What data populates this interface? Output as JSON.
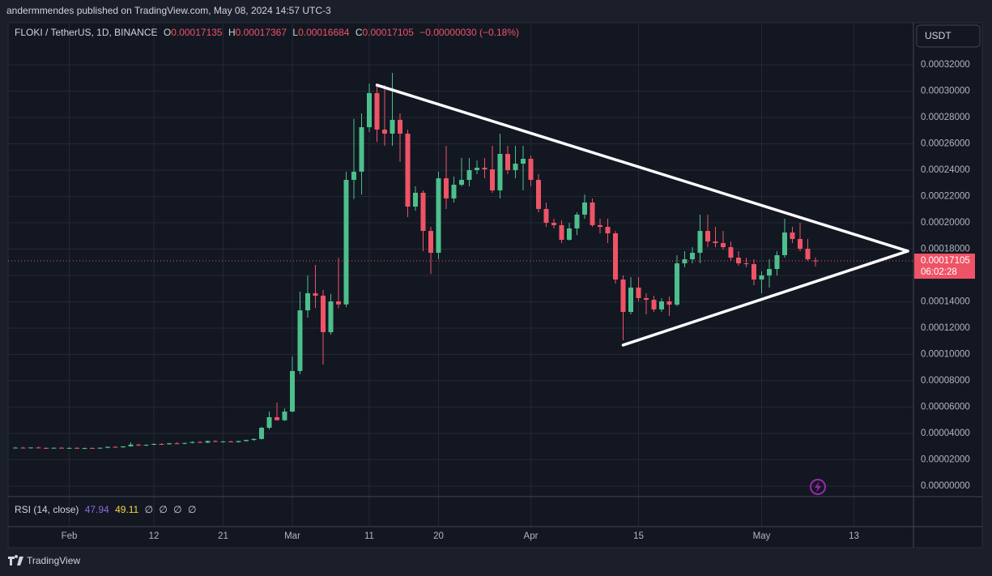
{
  "header": {
    "publisher": "andermmendes published on TradingView.com, May 08, 2024 14:57 UTC-3"
  },
  "chart_data": {
    "type": "candlestick",
    "symbol": "FLOKI / TetherUS, 1D, BINANCE",
    "ohlc_labels": [
      "O",
      "H",
      "L",
      "C"
    ],
    "change_label": "−0.00000030 (−0.18%)",
    "currency": "USDT",
    "countdown": "06:02:28",
    "categories": [
      null,
      null,
      null,
      null,
      null,
      null,
      null,
      "Feb",
      null,
      null,
      null,
      null,
      null,
      null,
      null,
      null,
      null,
      null,
      "12",
      null,
      null,
      null,
      null,
      null,
      null,
      null,
      null,
      "21",
      null,
      null,
      null,
      null,
      null,
      null,
      null,
      null,
      "Mar",
      null,
      null,
      null,
      null,
      null,
      null,
      null,
      null,
      null,
      "11",
      null,
      null,
      null,
      null,
      null,
      null,
      null,
      null,
      "20",
      null,
      null,
      null,
      null,
      null,
      null,
      null,
      null,
      null,
      null,
      null,
      "Apr",
      null,
      null,
      null,
      null,
      null,
      null,
      null,
      null,
      null,
      null,
      null,
      null,
      null,
      "15",
      null,
      null,
      null,
      null,
      null,
      null,
      null,
      null,
      null,
      null,
      null,
      null,
      null,
      null,
      null,
      "May",
      null,
      null,
      null,
      null,
      null,
      null,
      null,
      null,
      null,
      null,
      null,
      "13",
      null,
      null,
      null,
      null,
      null,
      null,
      null
    ],
    "open": [
      2.9e-05,
      2.92e-05,
      2.89e-05,
      2.93e-05,
      2.9e-05,
      2.87e-05,
      2.91e-05,
      2.88e-05,
      2.9e-05,
      2.85e-05,
      2.89e-05,
      2.87e-05,
      2.91e-05,
      2.98e-05,
      2.95e-05,
      3.02e-05,
      3.15e-05,
      3.1e-05,
      3.14e-05,
      3.2e-05,
      3.18e-05,
      3.25e-05,
      3.23e-05,
      3.28e-05,
      3.35e-05,
      3.3e-05,
      3.42e-05,
      3.36e-05,
      3.39e-05,
      3.34e-05,
      3.42e-05,
      3.5e-05,
      3.58e-05,
      4.43e-05,
      5.23e-05,
      5e-05,
      5.66e-05,
      8.74e-05,
      0.0001335,
      0.0001465,
      0.0001446,
      0.0001169,
      0.0001403,
      0.000138,
      0.0002326,
      0.0002388,
      0.0002726,
      0.0002985,
      0.0002708,
      0.0002677,
      0.0002782,
      0.0002677,
      0.0002123,
      0.0002228,
      0.0001938,
      0.0001772,
      0.0002338,
      0.0002185,
      0.0002289,
      0.0002326,
      0.00024,
      0.0002418,
      0.0002406,
      0.0002246,
      0.0002523,
      0.00024,
      0.0002449,
      0.0002486,
      0.0002326,
      0.0002105,
      0.0002,
      0.0001982,
      0.0001871,
      0.0001957,
      0.0002062,
      0.0002154,
      0.0001982,
      0.0001969,
      0.000192,
      0.0001569,
      0.0001323,
      0.0001508,
      0.0001428,
      0.0001415,
      0.0001342,
      0.0001403,
      0.0001378,
      0.0001692,
      0.0001723,
      0.0001772,
      0.0001938,
      0.0001858,
      0.0001846,
      0.0001815,
      0.0001735,
      0.0001692,
      0.0001686,
      0.0001569,
      0.00016,
      0.0001649,
      0.0001754,
      0.0001926,
      0.0001877,
      0.0001803,
      0.00017135,
      null,
      null,
      null,
      null,
      null,
      null,
      null,
      null,
      null,
      null,
      null,
      null
    ],
    "high": [
      2.96e-05,
      2.98e-05,
      2.95e-05,
      2.99e-05,
      2.95e-05,
      2.93e-05,
      2.97e-05,
      2.94e-05,
      2.96e-05,
      2.92e-05,
      2.94e-05,
      2.93e-05,
      3e-05,
      3.04e-05,
      3.01e-05,
      3.33e-05,
      3.2e-05,
      3.16e-05,
      3.25e-05,
      3.26e-05,
      3.28e-05,
      3.32e-05,
      3.29e-05,
      3.4e-05,
      3.41e-05,
      3.46e-05,
      3.48e-05,
      3.42e-05,
      3.45e-05,
      3.45e-05,
      3.52e-05,
      3.62e-05,
      4.5e-05,
      5.66e-05,
      6.34e-05,
      5.9e-05,
      9.85e-05,
      0.0001477,
      0.00016,
      0.000168,
      0.000149,
      0.000146,
      0.0001735,
      0.0002388,
      0.000279,
      0.0002831,
      0.0003058,
      0.0003058,
      0.0003046,
      0.0003138,
      0.0002831,
      0.0002708,
      0.0002277,
      0.0002246,
      0.0001969,
      0.0002388,
      0.0002585,
      0.0002351,
      0.0002492,
      0.0002492,
      0.0002474,
      0.0002492,
      0.0002585,
      0.0002677,
      0.0002585,
      0.0002585,
      0.0002585,
      0.0002511,
      0.0002369,
      0.0002154,
      0.0002031,
      0.0002019,
      0.0002,
      0.000208,
      0.0002215,
      0.0002185,
      0.0002031,
      0.0002031,
      0.0001938,
      0.00016,
      0.0001588,
      0.0001588,
      0.0001465,
      0.0001446,
      0.0001428,
      0.000144,
      0.0001754,
      0.0001784,
      0.0001815,
      0.0002062,
      0.0002062,
      0.0001969,
      0.0001938,
      0.0001858,
      0.0001784,
      0.0001735,
      0.0001723,
      0.0001631,
      0.0001723,
      0.0001784,
      0.0002031,
      0.0001969,
      0.0002,
      0.0001877,
      0.00017367,
      null,
      null,
      null,
      null,
      null,
      null,
      null,
      null,
      null,
      null,
      null,
      null
    ],
    "low": [
      2.86e-05,
      2.87e-05,
      2.85e-05,
      2.88e-05,
      2.84e-05,
      2.83e-05,
      2.88e-05,
      2.84e-05,
      2.86e-05,
      2.8e-05,
      2.84e-05,
      2.82e-05,
      2.88e-05,
      2.92e-05,
      2.9e-05,
      2.99e-05,
      3.05e-05,
      3.04e-05,
      3.1e-05,
      3.13e-05,
      3.14e-05,
      3.2e-05,
      3.17e-05,
      3.24e-05,
      3.28e-05,
      3.26e-05,
      3.33e-05,
      3.3e-05,
      3.32e-05,
      3.3e-05,
      3.38e-05,
      3.45e-05,
      3.54e-05,
      4.3e-05,
      5.1e-05,
      4.95e-05,
      5.6e-05,
      8.5e-05,
      0.000128,
      0.0001354,
      9.23e-05,
      0.000115,
      0.000135,
      0.000136,
      0.000218,
      0.0002215,
      0.000269,
      0.0002615,
      0.0002585,
      0.0002585,
      0.0002462,
      0.0002043,
      0.0002092,
      0.0001785,
      0.0001612,
      0.0001723,
      0.0002105,
      0.0002154,
      0.0002277,
      0.0002277,
      0.0002369,
      0.0002338,
      0.0002228,
      0.0002185,
      0.0002369,
      0.0002338,
      0.0002246,
      0.0002277,
      0.000208,
      0.0001969,
      0.0001957,
      0.0001846,
      0.0001865,
      0.0001907,
      0.0002031,
      0.0001969,
      0.000192,
      0.0001846,
      0.0001538,
      0.0001108,
      0.0001305,
      0.0001403,
      0.0001305,
      0.0001323,
      0.0001323,
      0.0001292,
      0.0001366,
      0.0001662,
      0.0001692,
      0.0001692,
      0.0001815,
      0.0001815,
      0.0001797,
      0.0001711,
      0.0001674,
      0.0001662,
      0.0001526,
      0.0001465,
      0.0001508,
      0.00016,
      0.0001735,
      0.0001846,
      0.0001785,
      0.0001711,
      0.00016684,
      null,
      null,
      null,
      null,
      null,
      null,
      null,
      null,
      null,
      null,
      null,
      null
    ],
    "close": [
      2.92e-05,
      2.89e-05,
      2.93e-05,
      2.9e-05,
      2.87e-05,
      2.91e-05,
      2.88e-05,
      2.9e-05,
      2.85e-05,
      2.89e-05,
      2.87e-05,
      2.91e-05,
      2.98e-05,
      2.95e-05,
      3.02e-05,
      3.15e-05,
      3.1e-05,
      3.14e-05,
      3.2e-05,
      3.18e-05,
      3.25e-05,
      3.23e-05,
      3.28e-05,
      3.35e-05,
      3.3e-05,
      3.42e-05,
      3.36e-05,
      3.39e-05,
      3.34e-05,
      3.42e-05,
      3.5e-05,
      3.58e-05,
      4.43e-05,
      5.23e-05,
      5e-05,
      5.66e-05,
      8.74e-05,
      0.0001335,
      0.0001465,
      0.0001446,
      0.0001169,
      0.0001403,
      0.000138,
      0.0002326,
      0.0002388,
      0.0002726,
      0.0002985,
      0.0002708,
      0.0002677,
      0.0002782,
      0.0002677,
      0.0002123,
      0.0002228,
      0.0001938,
      0.0001772,
      0.0002338,
      0.0002185,
      0.0002289,
      0.0002326,
      0.00024,
      0.0002418,
      0.0002406,
      0.0002246,
      0.0002523,
      0.00024,
      0.0002449,
      0.0002486,
      0.0002326,
      0.0002105,
      0.0002,
      0.0001982,
      0.0001871,
      0.0001957,
      0.0002062,
      0.0002154,
      0.0001982,
      0.0001969,
      0.000192,
      0.0001569,
      0.0001323,
      0.0001508,
      0.0001428,
      0.0001415,
      0.0001342,
      0.0001403,
      0.0001378,
      0.0001692,
      0.0001723,
      0.0001772,
      0.0001938,
      0.0001858,
      0.0001846,
      0.0001815,
      0.0001735,
      0.0001692,
      0.0001686,
      0.0001569,
      0.00016,
      0.0001649,
      0.0001754,
      0.0001926,
      0.0001877,
      0.0001803,
      0.0001723,
      0.00017105,
      null,
      null,
      null,
      null,
      null,
      null,
      null,
      null,
      null,
      null,
      null,
      null
    ],
    "up_color": "#4cbf8c",
    "down_color": "#ef5366",
    "ylim": [
      -8e-06,
      0.000352
    ],
    "yticks": [
      {
        "value": 0.00032,
        "label": "0.00032000"
      },
      {
        "value": 0.0003,
        "label": "0.00030000"
      },
      {
        "value": 0.00028,
        "label": "0.00028000"
      },
      {
        "value": 0.00026,
        "label": "0.00026000"
      },
      {
        "value": 0.00024,
        "label": "0.00024000"
      },
      {
        "value": 0.00022,
        "label": "0.00022000"
      },
      {
        "value": 0.0002,
        "label": "0.00020000"
      },
      {
        "value": 0.00018,
        "label": "0.00018000"
      },
      {
        "value": 0.00016,
        "label": "0.00016000"
      },
      {
        "value": 0.00014,
        "label": "0.00014000"
      },
      {
        "value": 0.00012,
        "label": "0.00012000"
      },
      {
        "value": 0.0001,
        "label": "0.00010000"
      },
      {
        "value": 8e-05,
        "label": "0.00008000"
      },
      {
        "value": 6e-05,
        "label": "0.00006000"
      },
      {
        "value": 4e-05,
        "label": "0.00004000"
      },
      {
        "value": 2e-05,
        "label": "0.00002000"
      },
      {
        "value": 0,
        "label": "0.00000000"
      }
    ],
    "grid": true,
    "trendlines": [
      {
        "x": [
          47,
          116
        ],
        "y": [
          0.0003046,
          0.0001785
        ]
      },
      {
        "x": [
          79,
          116
        ],
        "y": [
          0.0001071,
          0.0001785
        ]
      }
    ],
    "trendline_color": "#ffffff",
    "rsi": {
      "label": "RSI (14, close)",
      "values": [
        47.94,
        49.11
      ],
      "colors": [
        "#8e6ad8",
        "#f5d547"
      ],
      "na": [
        "∅",
        "∅",
        "∅",
        "∅"
      ]
    }
  },
  "footer": {
    "brand": "TradingView"
  }
}
